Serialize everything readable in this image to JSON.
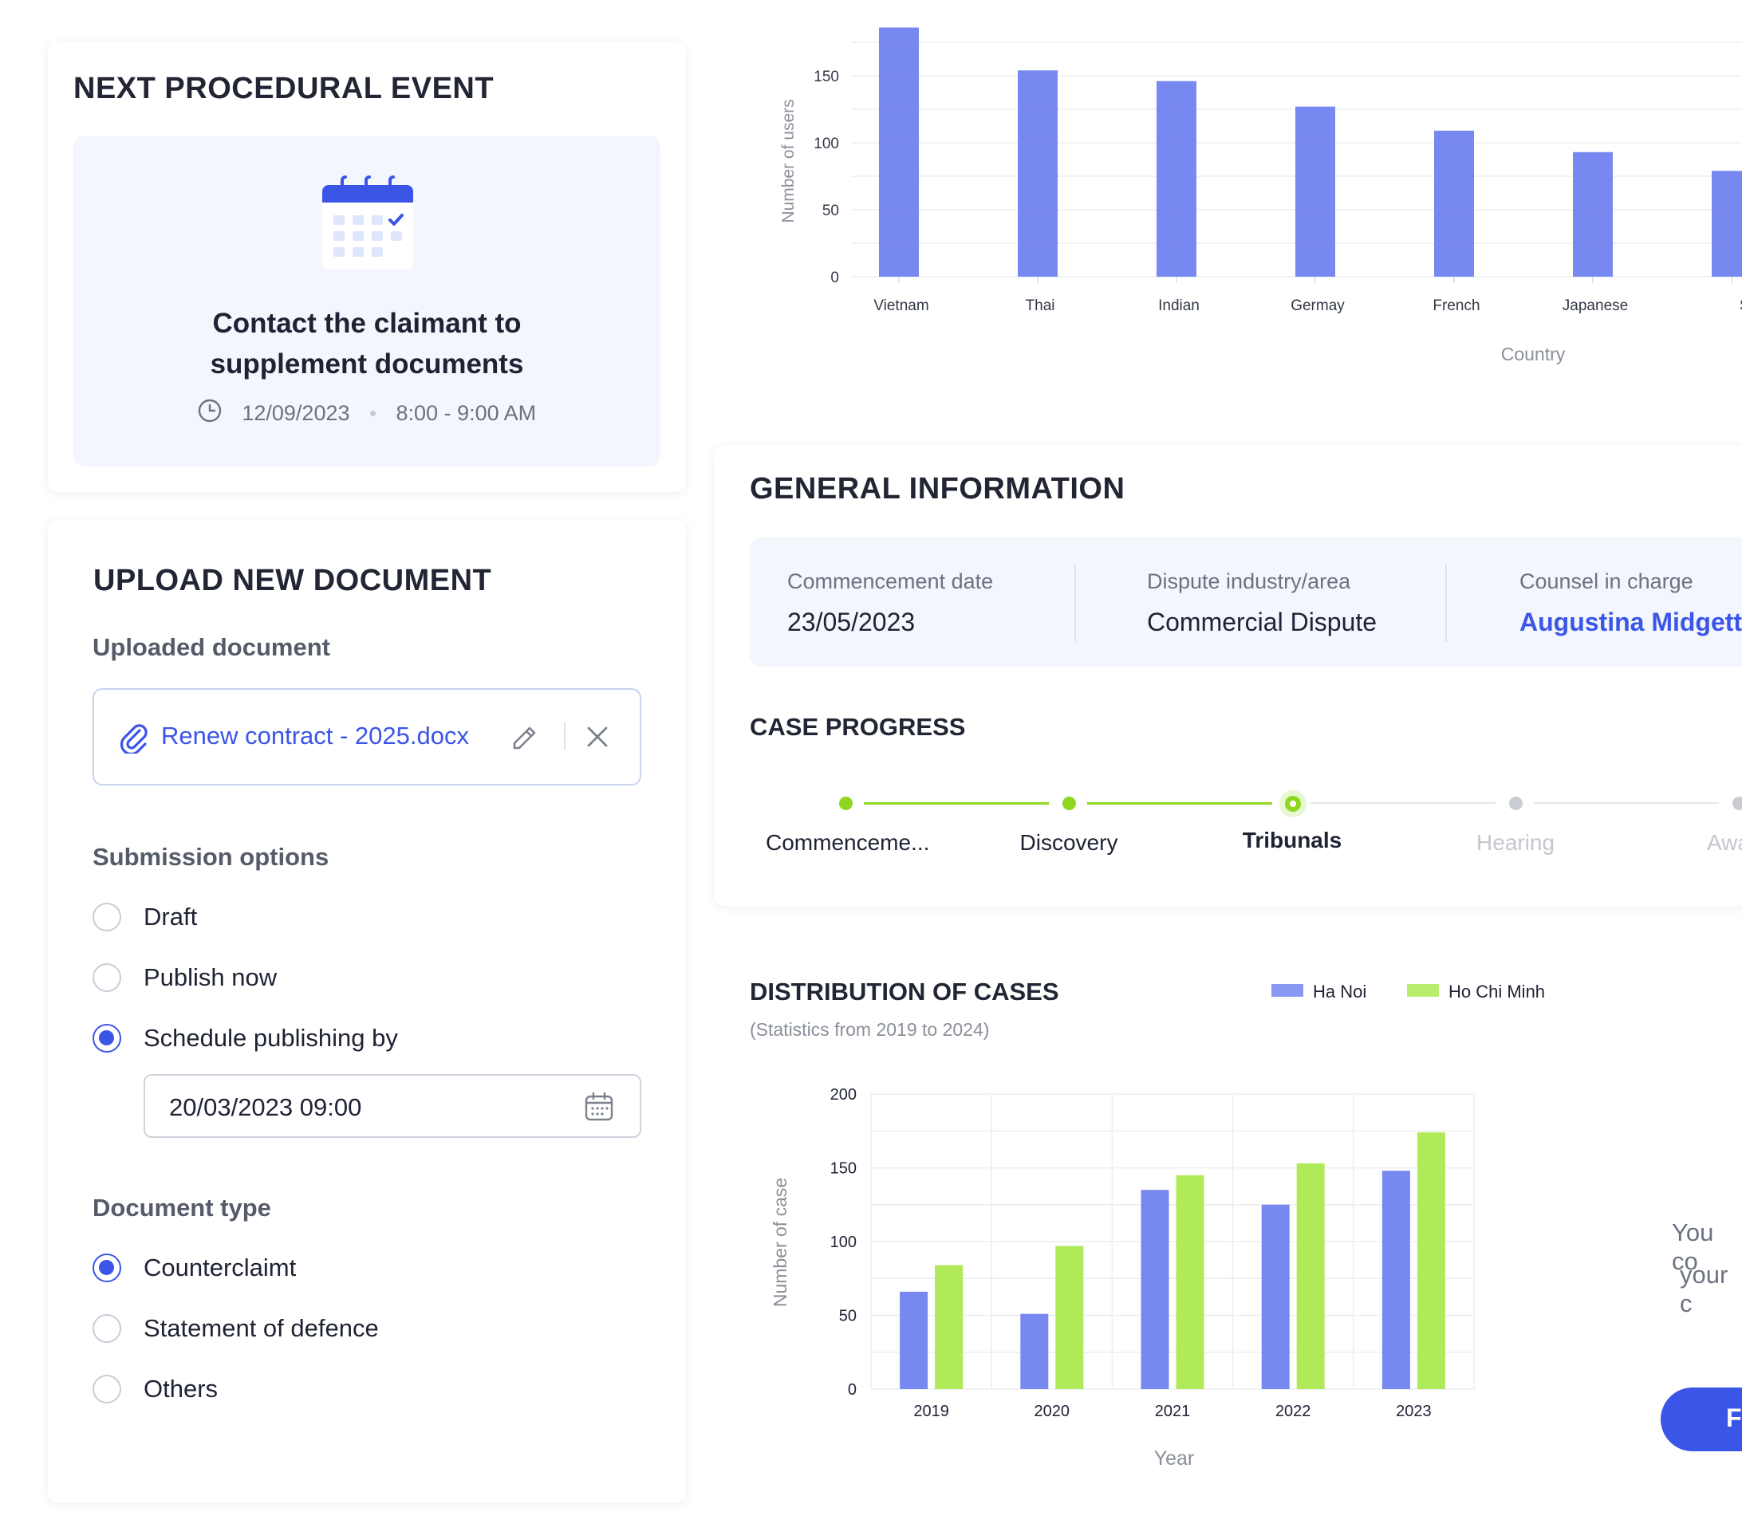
{
  "next_event": {
    "title": "NEXT PROCEDURAL EVENT",
    "event_title_line1": "Contact the claimant to",
    "event_title_line2": "supplement documents",
    "date": "12/09/2023",
    "time": "8:00 - 9:00 AM",
    "icons": [
      "calendar-icon",
      "clock-icon"
    ]
  },
  "upload": {
    "title": "UPLOAD NEW DOCUMENT",
    "uploaded_label": "Uploaded document",
    "file_name": "Renew contract - 2025.docx",
    "submission_label": "Submission options",
    "submission_options": [
      {
        "label": "Draft",
        "selected": false
      },
      {
        "label": "Publish now",
        "selected": false
      },
      {
        "label": "Schedule publishing by",
        "selected": true
      }
    ],
    "schedule_value": "20/03/2023 09:00",
    "doc_type_label": "Document type",
    "doc_type_options": [
      {
        "label": "Counterclaimt",
        "selected": true
      },
      {
        "label": "Statement of defence",
        "selected": false
      },
      {
        "label": "Others",
        "selected": false
      }
    ]
  },
  "general": {
    "title": "GENERAL INFORMATION",
    "commencement_label": "Commencement date",
    "commencement_value": "23/05/2023",
    "industry_label": "Dispute industry/area",
    "industry_value": "Commercial Dispute",
    "counsel_label": "Counsel in charge",
    "counsel_value": "Augustina Midgett",
    "progress_title": "CASE PROGRESS",
    "steps": [
      {
        "label": "Commenceme...",
        "state": "done"
      },
      {
        "label": "Discovery",
        "state": "done"
      },
      {
        "label": "Tribunals",
        "state": "current"
      },
      {
        "label": "Hearing",
        "state": "todo"
      },
      {
        "label": "Awa",
        "state": "todo"
      }
    ]
  },
  "distribution": {
    "title": "DISTRIBUTION OF CASES",
    "subtitle": "(Statistics from 2019 to 2024)"
  },
  "side_text": {
    "line1": "You co",
    "line2": "your c",
    "button_label": "F"
  },
  "colors": {
    "primary": "#3b55e6",
    "bar_blue": "#6c7ef0",
    "bar_green": "#a9e84a",
    "step_green": "#8fd61e",
    "panel_bg": "#f3f6fd"
  },
  "chart_data": [
    {
      "type": "bar",
      "categories": [
        "Vietnam",
        "Thai",
        "Indian",
        "Germay",
        "French",
        "Japanese",
        "Singap"
      ],
      "values": [
        186,
        154,
        146,
        127,
        109,
        93,
        79
      ],
      "xlabel": "Country",
      "ylabel": "Number of users",
      "yticks": [
        0,
        50,
        100,
        150
      ],
      "ylim": [
        0,
        190
      ],
      "grid": true
    },
    {
      "type": "bar",
      "categories": [
        "2019",
        "2020",
        "2021",
        "2022",
        "2023"
      ],
      "series": [
        {
          "name": "Ha Noi",
          "values": [
            66,
            51,
            135,
            125,
            148
          ]
        },
        {
          "name": "Ho Chi Minh",
          "values": [
            84,
            97,
            145,
            153,
            174
          ]
        }
      ],
      "xlabel": "Year",
      "ylabel": "Number of case",
      "yticks": [
        0,
        50,
        100,
        150,
        200
      ],
      "ylim": [
        0,
        200
      ],
      "grid": true,
      "legend": "top"
    }
  ]
}
